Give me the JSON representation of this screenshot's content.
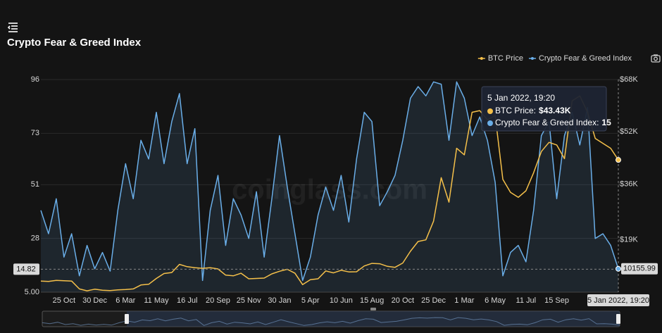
{
  "chart_data": {
    "type": "line",
    "title": "Crypto Fear & Greed Index",
    "watermark": "coinglass.com",
    "legend": "top-right",
    "grid": true,
    "categories": [
      null,
      null,
      null,
      "25 Oct",
      null,
      null,
      null,
      "30 Dec",
      null,
      null,
      null,
      "6 Mar",
      null,
      null,
      null,
      "11 May",
      null,
      null,
      null,
      "16 Jul",
      null,
      null,
      null,
      "20 Sep",
      null,
      null,
      null,
      "25 Nov",
      null,
      null,
      null,
      "30 Jan",
      null,
      null,
      null,
      "5 Apr",
      null,
      null,
      null,
      "10 Jun",
      null,
      null,
      null,
      "15 Aug",
      null,
      null,
      null,
      "20 Oct",
      null,
      null,
      null,
      "25 Dec",
      null,
      null,
      null,
      "1 Mar",
      null,
      null,
      null,
      "6 May",
      null,
      null,
      null,
      "11 Jul",
      null,
      null,
      null,
      "15 Sep",
      null,
      null,
      null,
      null,
      null,
      null,
      null,
      null
    ],
    "series": [
      {
        "name": "BTC Price",
        "color": "#f5c04a",
        "axis": "y2",
        "values": [
          6400,
          6300,
          6600,
          6500,
          6400,
          4000,
          3400,
          3900,
          3600,
          3500,
          3700,
          3800,
          4000,
          5200,
          5400,
          7200,
          8700,
          9000,
          11500,
          10800,
          10500,
          10300,
          10500,
          10100,
          8200,
          8000,
          8800,
          7100,
          7200,
          7300,
          8600,
          9400,
          10000,
          8800,
          5300,
          6800,
          7100,
          9500,
          8900,
          9700,
          9200,
          9250,
          11000,
          11800,
          11700,
          10900,
          10600,
          11900,
          15500,
          18500,
          19000,
          24700,
          38000,
          30500,
          47000,
          45000,
          58000,
          58500,
          55700,
          57000,
          37500,
          33500,
          32000,
          34000,
          39500,
          46000,
          48800,
          48000,
          43800,
          61500,
          63000,
          58000,
          50000,
          48500,
          47000,
          43430
        ]
      },
      {
        "name": "Crypto Fear & Greed Index",
        "color": "#6aaee8",
        "values": [
          40,
          30,
          45,
          20,
          30,
          12,
          25,
          15,
          22,
          14,
          40,
          60,
          45,
          70,
          62,
          82,
          60,
          78,
          90,
          60,
          75,
          10,
          40,
          55,
          25,
          45,
          38,
          28,
          48,
          20,
          45,
          72,
          50,
          30,
          10,
          20,
          38,
          50,
          40,
          55,
          35,
          62,
          82,
          78,
          42,
          48,
          55,
          70,
          88,
          93,
          89,
          95,
          94,
          70,
          95,
          88,
          72,
          80,
          70,
          52,
          12,
          22,
          25,
          18,
          40,
          72,
          78,
          45,
          72,
          82,
          68,
          84,
          28,
          30,
          25,
          15
        ]
      }
    ],
    "ylim": [
      5,
      96
    ],
    "yticks": [
      {
        "value": 5,
        "label": "5.00"
      },
      28,
      51,
      73,
      96
    ],
    "y2lim": [
      3000,
      68000
    ],
    "y2ticks": [
      {
        "value": 19000,
        "label": "$19K"
      },
      {
        "value": 36000,
        "label": "$36K"
      },
      {
        "value": 52000,
        "label": "$52K"
      },
      {
        "value": 68000,
        "label": "$68K"
      }
    ],
    "crosshair": {
      "y": 14.82,
      "y2": 10155.99,
      "x_label": "5 Jan 2022, 19:20"
    },
    "tooltip": {
      "title": "5 Jan 2022, 19:20",
      "rows": [
        {
          "label": "BTC Price:",
          "value": "$43.43K"
        },
        {
          "label": "Crypto Fear & Greed Index:",
          "value": "15"
        }
      ]
    }
  }
}
